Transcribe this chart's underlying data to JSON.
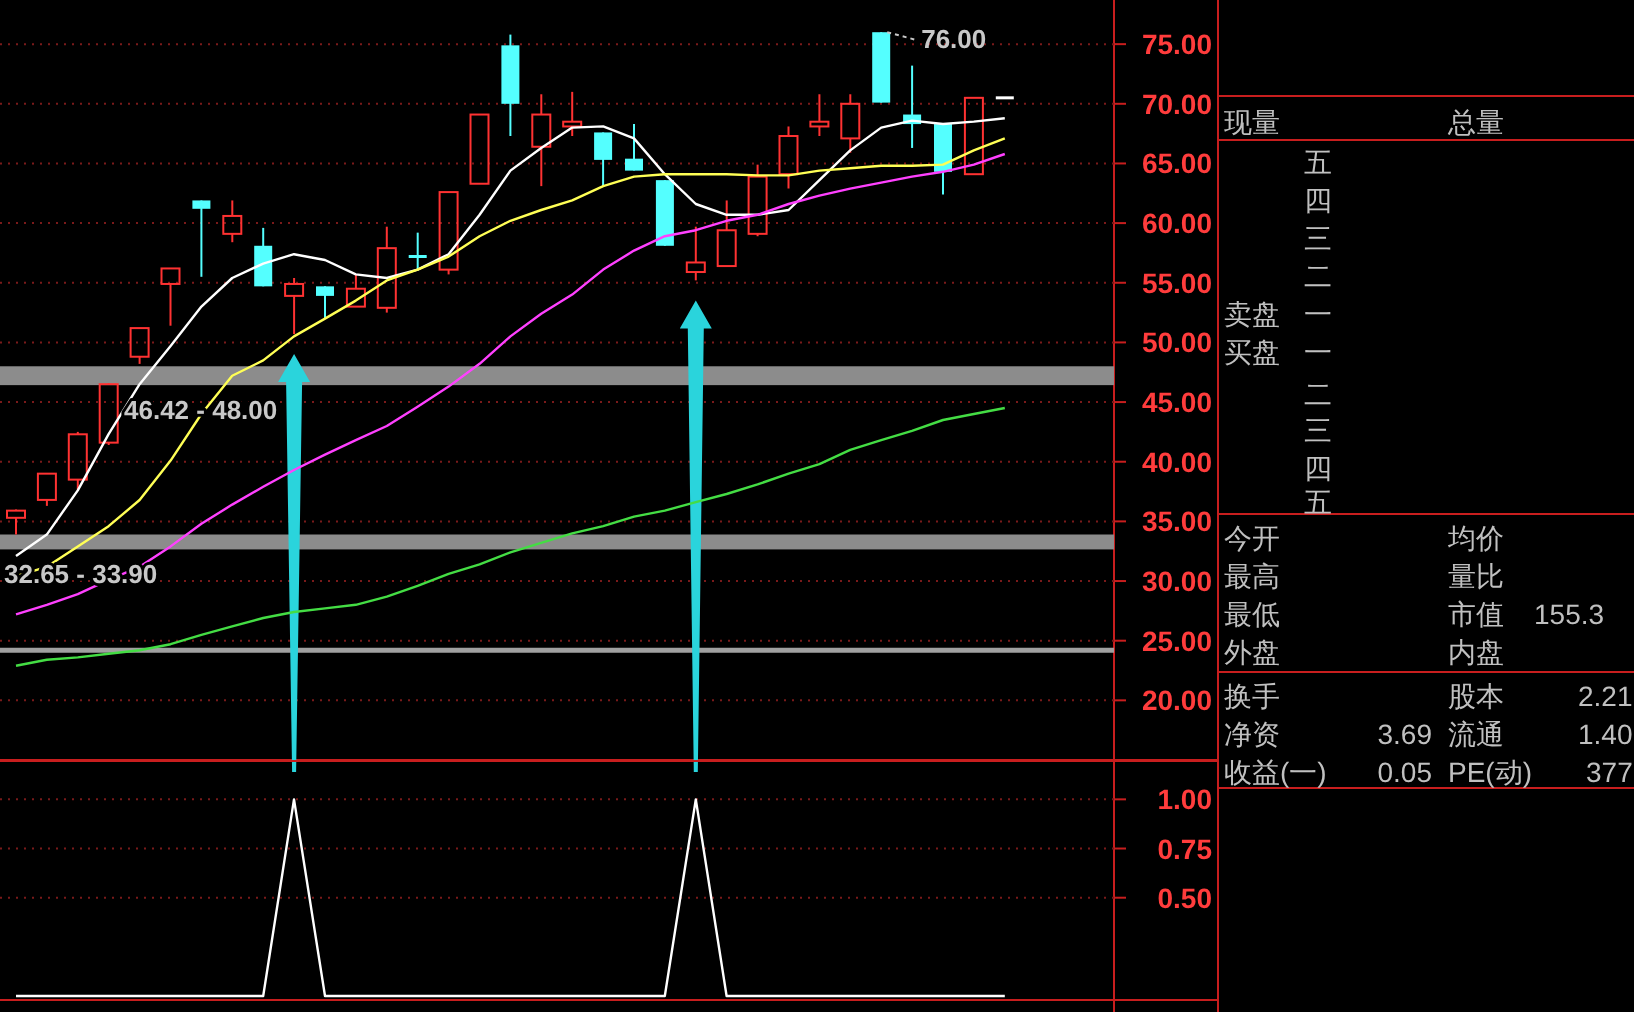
{
  "chart_data": [
    {
      "type": "candlestick",
      "categories": [
        null,
        null,
        null,
        null,
        null,
        null,
        null,
        null,
        null,
        null,
        null,
        null,
        null,
        null,
        null,
        null,
        null,
        null,
        null,
        null,
        null,
        null,
        null,
        null,
        null,
        null,
        null,
        null,
        null,
        null,
        null,
        null,
        null
      ],
      "ohlc": [
        [
          35.3,
          36.0,
          33.9,
          35.9
        ],
        [
          36.8,
          39.0,
          36.3,
          39.0
        ],
        [
          38.5,
          42.5,
          37.6,
          42.3
        ],
        [
          41.6,
          46.6,
          41.4,
          46.5
        ],
        [
          48.8,
          51.2,
          48.2,
          51.2
        ],
        [
          54.9,
          56.2,
          51.4,
          56.2
        ],
        [
          61.9,
          61.9,
          55.5,
          61.2
        ],
        [
          59.1,
          61.9,
          58.4,
          60.6
        ],
        [
          58.1,
          59.6,
          54.7,
          54.7
        ],
        [
          53.9,
          55.4,
          50.7,
          54.9
        ],
        [
          54.7,
          54.7,
          52.0,
          53.9
        ],
        [
          53.0,
          55.7,
          53.0,
          54.5
        ],
        [
          52.9,
          59.7,
          52.5,
          57.9
        ],
        [
          57.2,
          59.2,
          56.1,
          57.2
        ],
        [
          56.1,
          62.6,
          55.7,
          62.6
        ],
        [
          63.3,
          69.1,
          63.3,
          69.1
        ],
        [
          74.9,
          75.8,
          67.3,
          70.0
        ],
        [
          66.4,
          70.8,
          63.1,
          69.1
        ],
        [
          68.1,
          71.0,
          67.3,
          68.5
        ],
        [
          67.6,
          67.6,
          63.1,
          65.3
        ],
        [
          65.4,
          68.3,
          64.4,
          64.4
        ],
        [
          63.6,
          63.6,
          58.1,
          58.1
        ],
        [
          55.9,
          59.7,
          55.2,
          56.7
        ],
        [
          56.4,
          61.9,
          56.4,
          59.4
        ],
        [
          59.1,
          64.9,
          58.9,
          63.9
        ],
        [
          64.1,
          68.1,
          62.9,
          67.3
        ],
        [
          68.1,
          70.8,
          67.3,
          68.5
        ],
        [
          67.1,
          70.8,
          65.9,
          70.0
        ],
        [
          76.0,
          76.0,
          70.1,
          70.1
        ],
        [
          69.1,
          73.2,
          66.3,
          68.3
        ],
        [
          68.3,
          68.3,
          62.4,
          64.3
        ],
        [
          64.1,
          70.5,
          64.1,
          70.5
        ],
        [
          70.5,
          70.5,
          70.5,
          70.5
        ]
      ],
      "colors": [
        "#ff3232",
        "#ff3232",
        "#ff3232",
        "#ff3232",
        "#ff3232",
        "#ff3232",
        "#54ffff",
        "#ff3232",
        "#54ffff",
        "#ff3232",
        "#54ffff",
        "#ff3232",
        "#ff3232",
        "#54ffff",
        "#ff3232",
        "#ff3232",
        "#54ffff",
        "#ff3232",
        "#ff3232",
        "#54ffff",
        "#54ffff",
        "#54ffff",
        "#ff3232",
        "#ff3232",
        "#ff3232",
        "#ff3232",
        "#ff3232",
        "#ff3232",
        "#54ffff",
        "#54ffff",
        "#54ffff",
        "#ff3232",
        "#ffffff"
      ],
      "series": [
        {
          "type": "line",
          "color": "#ffffff",
          "values": [
            32.1,
            33.9,
            37.6,
            42.3,
            46.5,
            49.7,
            53.0,
            55.4,
            56.6,
            57.4,
            56.9,
            55.7,
            55.4,
            56.1,
            57.4,
            60.7,
            64.4,
            66.3,
            68.0,
            68.1,
            67.1,
            64.1,
            61.6,
            60.7,
            60.7,
            61.1,
            63.6,
            66.1,
            68.0,
            68.6,
            68.3,
            68.5,
            68.8
          ]
        },
        {
          "type": "line",
          "color": "#ffff55",
          "values": [
            30.4,
            31.2,
            32.9,
            34.6,
            36.8,
            40.1,
            44.0,
            47.2,
            48.5,
            50.5,
            52.0,
            53.5,
            55.2,
            56.1,
            57.2,
            58.9,
            60.2,
            61.1,
            61.9,
            63.1,
            63.9,
            64.1,
            64.1,
            64.1,
            64.0,
            64.0,
            64.4,
            64.6,
            64.8,
            64.8,
            64.9,
            66.1,
            67.1
          ]
        },
        {
          "type": "line",
          "color": "#ff40ff",
          "values": [
            27.2,
            28.0,
            28.9,
            30.1,
            31.2,
            32.9,
            34.8,
            36.4,
            37.9,
            39.3,
            40.6,
            41.8,
            43.0,
            44.6,
            46.3,
            48.2,
            50.5,
            52.4,
            54.0,
            56.1,
            57.7,
            58.9,
            59.4,
            60.2,
            60.7,
            61.6,
            62.3,
            62.9,
            63.4,
            63.9,
            64.3,
            64.9,
            65.8
          ]
        },
        {
          "type": "line",
          "color": "#44dd44",
          "values": [
            22.9,
            23.4,
            23.6,
            23.9,
            24.2,
            24.7,
            25.5,
            26.2,
            26.9,
            27.4,
            27.7,
            28.0,
            28.7,
            29.6,
            30.6,
            31.4,
            32.4,
            33.2,
            34.0,
            34.6,
            35.4,
            35.9,
            36.6,
            37.3,
            38.1,
            39.0,
            39.8,
            41.0,
            41.8,
            42.6,
            43.5,
            44.0,
            44.5
          ]
        }
      ],
      "ylim": [
        15.0,
        78.7
      ],
      "yticks": [
        {
          "value": 20,
          "label": "20.00"
        },
        {
          "value": 25,
          "label": "25.00"
        },
        {
          "value": 30,
          "label": "30.00"
        },
        {
          "value": 35,
          "label": "35.00"
        },
        {
          "value": 40,
          "label": "40.00"
        },
        {
          "value": 45,
          "label": "45.00"
        },
        {
          "value": 50,
          "label": "50.00"
        },
        {
          "value": 55,
          "label": "55.00"
        },
        {
          "value": 60,
          "label": "60.00"
        },
        {
          "value": 65,
          "label": "65.00"
        },
        {
          "value": 70,
          "label": "70.00"
        },
        {
          "value": 75,
          "label": "75.00"
        }
      ],
      "bands": [
        {
          "axis": "y",
          "from": 46.42,
          "to": 48.0,
          "label": "46.42 - 48.00",
          "color": "#8c8c8c"
        },
        {
          "axis": "y",
          "from": 32.65,
          "to": 33.9,
          "label": "32.65 - 33.90",
          "color": "#8c8c8c"
        }
      ],
      "ref_lines": [
        {
          "axis": "y",
          "value": 24.2,
          "color": "#a0a0a0"
        }
      ],
      "annotations": [
        "76.00"
      ],
      "grid": "y"
    },
    {
      "type": "line",
      "categories": [
        null,
        null,
        null,
        null,
        null,
        null,
        null,
        null,
        null,
        null,
        null,
        null,
        null,
        null,
        null,
        null,
        null,
        null,
        null,
        null,
        null,
        null,
        null,
        null,
        null,
        null,
        null,
        null,
        null,
        null,
        null,
        null,
        null
      ],
      "series": [
        {
          "color": "#ffffff",
          "values": [
            0,
            0,
            0,
            0,
            0,
            0,
            0,
            0,
            0,
            1,
            0,
            0,
            0,
            0,
            0,
            0,
            0,
            0,
            0,
            0,
            0,
            0,
            1,
            0,
            0,
            0,
            0,
            0,
            0,
            0,
            0,
            0,
            0
          ]
        }
      ],
      "ylim": [
        -0.02,
        1.2
      ],
      "yticks": [
        {
          "value": 0.5,
          "label": "0.50"
        },
        {
          "value": 0.75,
          "label": "0.75"
        },
        {
          "value": 1.0,
          "label": "1.00"
        }
      ],
      "grid": "y"
    },
    {
      "type": "other",
      "annotations": [
        "现量",
        "总量",
        "五",
        "四",
        "三",
        "二",
        "卖盘",
        "一",
        "买盘",
        "一",
        "二",
        "三",
        "四",
        "五",
        "今开",
        "均价",
        "最高",
        "量比",
        "最低",
        "市值",
        "155.3",
        "外盘",
        "内盘",
        "换手",
        "股本",
        "2.21",
        "净资",
        "3.69",
        "流通",
        "1.40",
        "收益(一)",
        "0.05",
        "PE(动)",
        "377"
      ]
    }
  ]
}
